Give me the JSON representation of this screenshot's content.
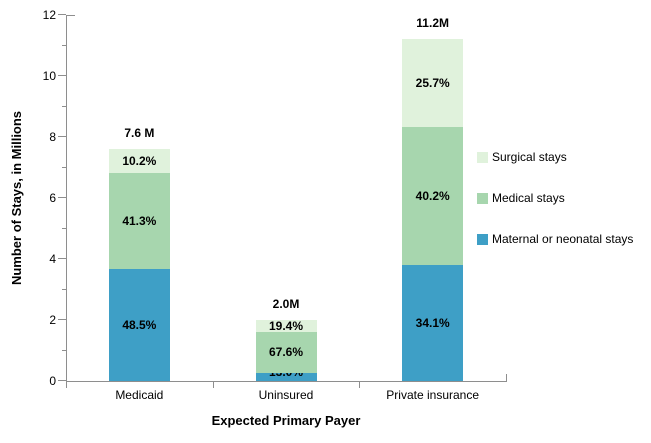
{
  "chart_data": {
    "type": "bar",
    "variant": "stacked-vertical-column",
    "title": "",
    "xlabel": "Expected Primary Payer",
    "ylabel": "Number of Stays, in Millions",
    "ylim": [
      0,
      12
    ],
    "ytick_step": 2,
    "ytick_minor_step": 1,
    "grid": false,
    "legend_position": "right-middle",
    "categories": [
      "Medicaid",
      "Uninsured",
      "Private insurance"
    ],
    "totals": {
      "labels": [
        "7.6 M",
        "2.0M",
        "11.2M"
      ],
      "values": [
        7.6,
        2.0,
        11.2
      ]
    },
    "series": [
      {
        "name": "Maternal or neonatal stays",
        "color": "#3E9FC6",
        "percents": [
          48.5,
          13.0,
          34.1
        ],
        "percent_labels": [
          "48.5%",
          "13.0%",
          "34.1%"
        ]
      },
      {
        "name": "Medical stays",
        "color": "#A7D6AE",
        "percents": [
          41.3,
          67.6,
          40.2
        ],
        "percent_labels": [
          "41.3%",
          "67.6%",
          "40.2%"
        ]
      },
      {
        "name": "Surgical stays",
        "color": "#E0F2DC",
        "percents": [
          10.2,
          19.4,
          25.7
        ],
        "percent_labels": [
          "10.2%",
          "19.4%",
          "25.7%"
        ]
      }
    ],
    "legend_items": [
      "Surgical stays",
      "Medical stays",
      "Maternal or neonatal stays"
    ],
    "colors": {
      "axis": "#8E8E8E",
      "text": "#000000",
      "background": "#FFFFFF"
    }
  }
}
